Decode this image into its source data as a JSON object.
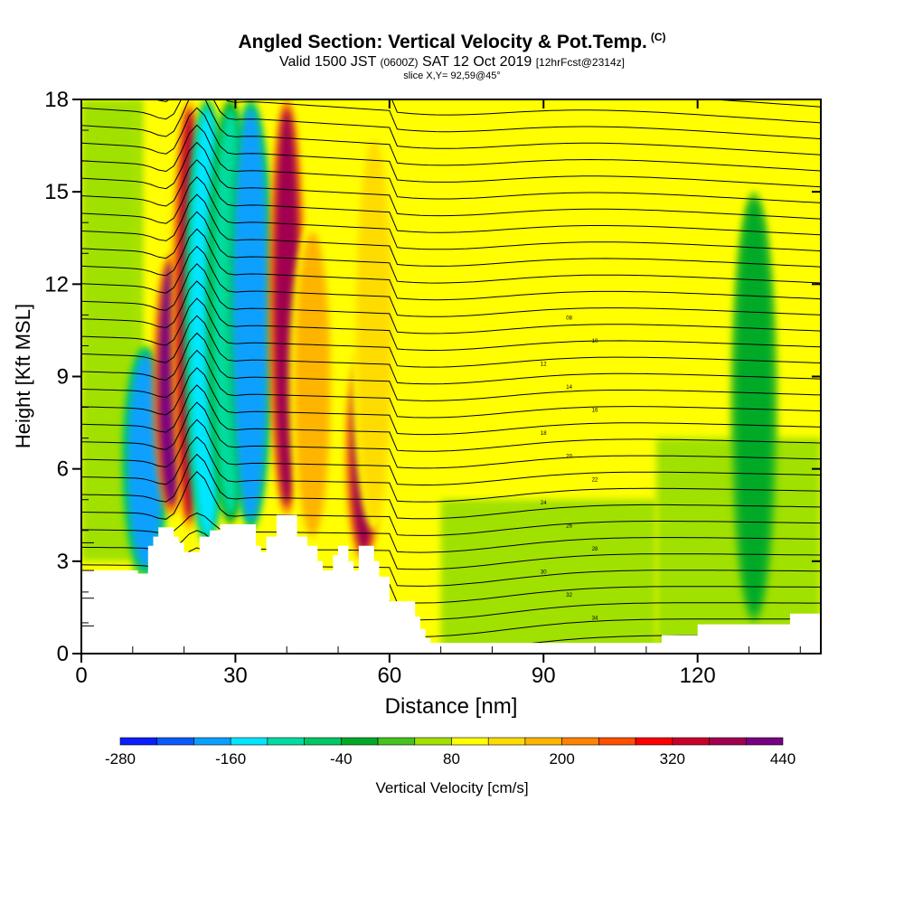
{
  "chart_data": {
    "type": "heatmap",
    "title": "Angled Section: Vertical Velocity & Pot.Temp.",
    "title_suffix": "(C)",
    "subtitle_main_1": "Valid 1500 JST",
    "subtitle_small_1": "(0600Z)",
    "subtitle_main_2": "SAT 12 Oct 2019",
    "subtitle_small_2": "[12hrFcst@2314z]",
    "slice": "slice X,Y= 92,59@45°",
    "xlabel": "Distance [nm]",
    "ylabel": "Height [Kft MSL]",
    "xlim": [
      0,
      144
    ],
    "ylim": [
      0,
      18
    ],
    "x_ticks": [
      0,
      30,
      60,
      90,
      120
    ],
    "y_ticks": [
      0,
      3,
      6,
      9,
      12,
      15,
      18
    ],
    "colorbar": {
      "label": "Vertical Velocity [cm/s]",
      "tick_labels": [
        "-280",
        "-160",
        "-40",
        "80",
        "200",
        "320",
        "440"
      ],
      "colors": [
        "#0a1eff",
        "#0a5aff",
        "#0aa0ff",
        "#00e6ff",
        "#00dca0",
        "#00c864",
        "#00aa28",
        "#46c31e",
        "#a0e100",
        "#ffff00",
        "#ffdc00",
        "#ffb400",
        "#ff8200",
        "#ff5000",
        "#ff0000",
        "#c80028",
        "#a00050",
        "#780082"
      ]
    },
    "terrain_profile": [
      [
        0,
        2.7
      ],
      [
        8,
        2.7
      ],
      [
        11,
        2.6
      ],
      [
        12,
        2.6
      ],
      [
        13,
        3.5
      ],
      [
        14,
        3.8
      ],
      [
        15,
        4.1
      ],
      [
        18,
        3.8
      ],
      [
        19,
        3.6
      ],
      [
        20,
        3.3
      ],
      [
        22,
        3.3
      ],
      [
        23,
        3.8
      ],
      [
        25,
        4.0
      ],
      [
        27,
        4.2
      ],
      [
        32,
        4.2
      ],
      [
        34,
        3.5
      ],
      [
        35,
        3.3
      ],
      [
        36,
        3.8
      ],
      [
        38,
        4.5
      ],
      [
        40,
        4.5
      ],
      [
        42,
        3.8
      ],
      [
        44,
        3.5
      ],
      [
        46,
        3.0
      ],
      [
        47,
        2.7
      ],
      [
        48,
        2.7
      ],
      [
        49,
        3.2
      ],
      [
        50,
        3.5
      ],
      [
        52,
        3.0
      ],
      [
        53,
        2.7
      ],
      [
        54,
        3.5
      ],
      [
        56,
        3.5
      ],
      [
        57,
        3.0
      ],
      [
        58,
        2.5
      ],
      [
        60,
        1.7
      ],
      [
        63,
        1.7
      ],
      [
        65,
        1.2
      ],
      [
        66,
        0.8
      ],
      [
        67,
        0.5
      ],
      [
        68,
        0.35
      ],
      [
        80,
        0.35
      ],
      [
        94,
        0.35
      ],
      [
        95,
        0.35
      ],
      [
        110,
        0.35
      ],
      [
        112,
        0.35
      ],
      [
        113,
        0.6
      ],
      [
        120,
        0.95
      ],
      [
        130,
        0.95
      ],
      [
        138,
        1.3
      ],
      [
        144,
        1.3
      ]
    ],
    "velocity_features": [
      {
        "x": 12.5,
        "y0": 2.5,
        "y1": 10,
        "value": -220
      },
      {
        "x": 17.5,
        "y0": 4.5,
        "y1": 13,
        "value": 380
      },
      {
        "x": 21,
        "y0": 4.0,
        "y1": 18,
        "value": 300
      },
      {
        "x": 24.5,
        "y0": 3.5,
        "y1": 18,
        "value": -200
      },
      {
        "x": 29,
        "y0": 4.2,
        "y1": 18,
        "value": -160
      },
      {
        "x": 33,
        "y0": 4.0,
        "y1": 18,
        "value": -240
      },
      {
        "x": 40,
        "y0": 4.5,
        "y1": 18,
        "value": 340
      },
      {
        "x": 45,
        "y0": 3.5,
        "y1": 14,
        "value": 120
      },
      {
        "x": 55,
        "y0": 3.0,
        "y1": 10,
        "value": 320
      },
      {
        "x": 57,
        "y0": 4.0,
        "y1": 17,
        "value": 110
      },
      {
        "x": 131,
        "y0": 1.0,
        "y1": 15,
        "value": -60
      }
    ],
    "isentrope_labels": [
      "34",
      "32",
      "30",
      "28",
      "26",
      "24",
      "22",
      "20",
      "18",
      "16",
      "14",
      "12",
      "10",
      "08"
    ]
  }
}
